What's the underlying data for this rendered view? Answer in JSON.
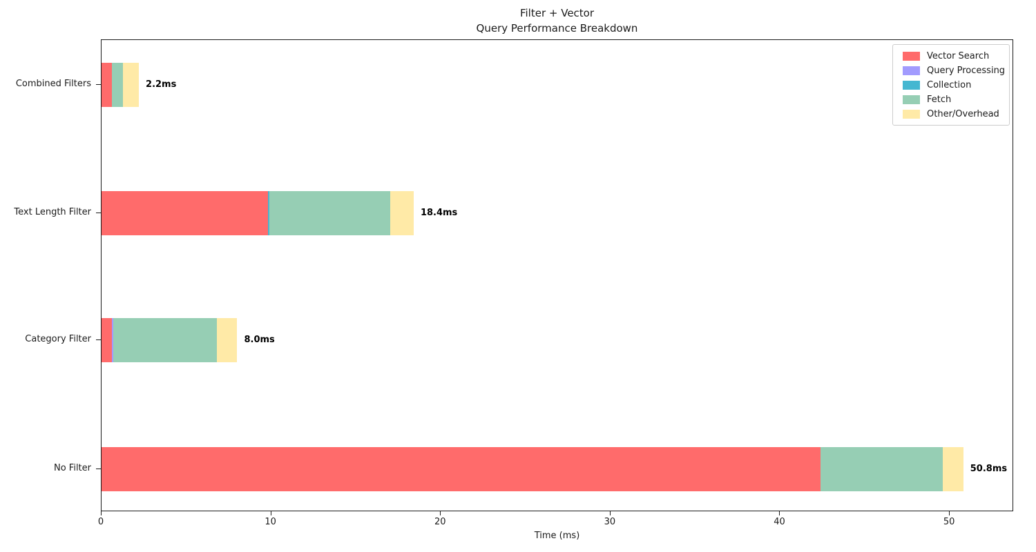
{
  "title": {
    "line1": "Filter + Vector",
    "line2": "Query Performance Breakdown"
  },
  "chart_data": {
    "type": "bar",
    "orientation": "horizontal-stacked",
    "title": "Filter + Vector\nQuery Performance Breakdown",
    "xlabel": "Time (ms)",
    "ylabel": "",
    "xlim": [
      0,
      53.7
    ],
    "xticks": [
      "0",
      "10",
      "20",
      "30",
      "40",
      "50"
    ],
    "xtick_values": [
      0,
      10,
      20,
      30,
      40,
      50
    ],
    "grid": false,
    "legend_position": "upper right",
    "series": [
      {
        "name": "Vector Search",
        "color": "#FF6B6B"
      },
      {
        "name": "Query Processing",
        "color": "#A29BFE"
      },
      {
        "name": "Collection",
        "color": "#45B7D1"
      },
      {
        "name": "Fetch",
        "color": "#96CEB4"
      },
      {
        "name": "Other/Overhead",
        "color": "#FFEAA7"
      }
    ],
    "rows": [
      {
        "category": "Combined Filters",
        "values": [
          0.6,
          0.0,
          0.0,
          0.65,
          0.95
        ],
        "total": 2.2,
        "total_label": "2.2ms"
      },
      {
        "category": "Text Length Filter",
        "values": [
          9.8,
          0.0,
          0.1,
          7.1,
          1.4
        ],
        "total": 18.4,
        "total_label": "18.4ms"
      },
      {
        "category": "Category Filter",
        "values": [
          0.6,
          0.1,
          0.0,
          6.1,
          1.2
        ],
        "total": 8.0,
        "total_label": "8.0ms"
      },
      {
        "category": "No Filter",
        "values": [
          42.4,
          0.0,
          0.0,
          7.2,
          1.2
        ],
        "total": 50.8,
        "total_label": "50.8ms"
      }
    ]
  }
}
